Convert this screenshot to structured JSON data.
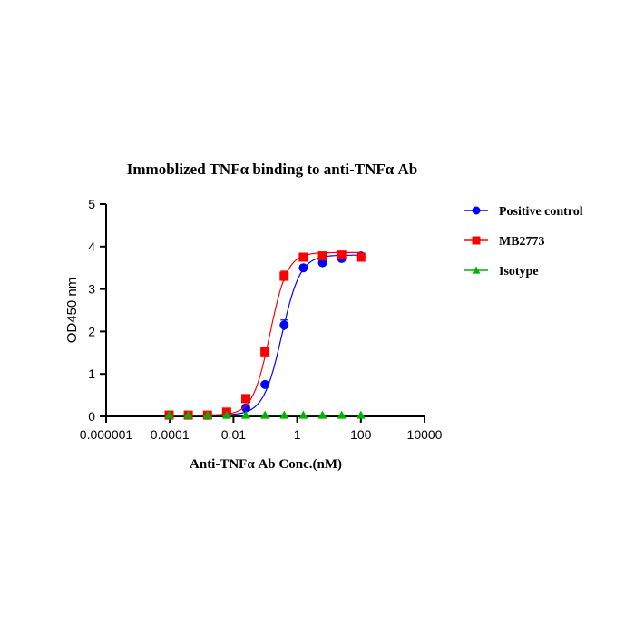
{
  "chart_data": {
    "type": "scatter",
    "title": "Immoblized TNFα binding to anti-TNFα Ab",
    "xlabel": "Anti-TNFα Ab Conc.(nM)",
    "ylabel": "OD450 nm",
    "xscale": "log",
    "xlim": [
      1e-06,
      10000
    ],
    "ylim": [
      0,
      5
    ],
    "xticks": [
      1e-06,
      0.0001,
      0.01,
      1,
      100,
      10000
    ],
    "xtick_labels": [
      "0.000001",
      "0.0001",
      "0.01",
      "1",
      "100",
      "10000"
    ],
    "yticks": [
      0,
      1,
      2,
      3,
      4,
      5
    ],
    "ytick_labels": [
      "0",
      "1",
      "2",
      "3",
      "4",
      "5"
    ],
    "grid": false,
    "legend_position": "right",
    "x": [
      9.54e-05,
      0.000381,
      0.00153,
      0.0061,
      0.0244,
      0.0977,
      0.391,
      1.5625,
      6.25,
      25,
      100
    ],
    "series": [
      {
        "name": "Positive control",
        "color": "#0000ff",
        "marker": "circle",
        "values": [
          0.03,
          0.03,
          0.03,
          0.05,
          0.2,
          0.75,
          2.15,
          3.5,
          3.62,
          3.72,
          3.78
        ],
        "errors": [
          0.01,
          0.01,
          0.01,
          0.01,
          0.02,
          0.03,
          0.12,
          0.05,
          0.1,
          0.05,
          0.05
        ],
        "fit": {
          "bottom": 0.03,
          "top": 3.8,
          "ec50": 0.33,
          "hill": 1.5
        }
      },
      {
        "name": "MB2773",
        "color": "#ff0000",
        "marker": "square",
        "values": [
          0.03,
          0.03,
          0.03,
          0.1,
          0.42,
          1.52,
          3.3,
          3.75,
          3.78,
          3.8,
          3.75
        ],
        "errors": [
          0.01,
          0.01,
          0.01,
          0.01,
          0.02,
          0.04,
          0.12,
          0.05,
          0.04,
          0.03,
          0.05
        ],
        "fit": {
          "bottom": 0.03,
          "top": 3.86,
          "ec50": 0.14,
          "hill": 1.6
        }
      },
      {
        "name": "Isotype",
        "color": "#00b400",
        "marker": "triangle",
        "values": [
          0.03,
          0.03,
          0.03,
          0.03,
          0.03,
          0.03,
          0.03,
          0.03,
          0.03,
          0.03,
          0.03
        ],
        "errors": [
          0,
          0,
          0,
          0,
          0,
          0,
          0,
          0,
          0,
          0,
          0
        ],
        "fit": null
      }
    ]
  }
}
